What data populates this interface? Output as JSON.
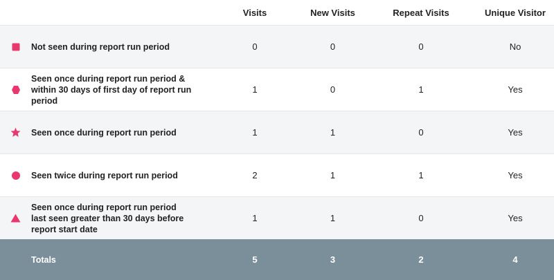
{
  "colors": {
    "icon_pink": "#e8386d",
    "totals_bg": "#7a8f9a",
    "alt_row_bg": "#f4f5f7"
  },
  "columns": {
    "visits": "Visits",
    "new_visits": "New Visits",
    "repeat_visits": "Repeat Visits",
    "unique_visitor": "Unique Visitor"
  },
  "rows": [
    {
      "icon": "square-icon",
      "label_lines": [
        "Not seen during report run period"
      ],
      "visits": "0",
      "new_visits": "0",
      "repeat_visits": "0",
      "unique_visitor": "No"
    },
    {
      "icon": "hexagon-icon",
      "label_lines": [
        "Seen once during report run period &",
        "within 30 days of first day of report run period"
      ],
      "visits": "1",
      "new_visits": "0",
      "repeat_visits": "1",
      "unique_visitor": "Yes"
    },
    {
      "icon": "star-icon",
      "label_lines": [
        "Seen once during report run period"
      ],
      "visits": "1",
      "new_visits": "1",
      "repeat_visits": "0",
      "unique_visitor": "Yes"
    },
    {
      "icon": "circle-icon",
      "label_lines": [
        "Seen twice during report run period"
      ],
      "visits": "2",
      "new_visits": "1",
      "repeat_visits": "1",
      "unique_visitor": "Yes"
    },
    {
      "icon": "triangle-icon",
      "label_lines": [
        "Seen once during report run period",
        "last seen greater than 30 days before",
        "report start date"
      ],
      "visits": "1",
      "new_visits": "1",
      "repeat_visits": "0",
      "unique_visitor": "Yes"
    }
  ],
  "totals": {
    "label": "Totals",
    "visits": "5",
    "new_visits": "3",
    "repeat_visits": "2",
    "unique_visitor": "4"
  }
}
